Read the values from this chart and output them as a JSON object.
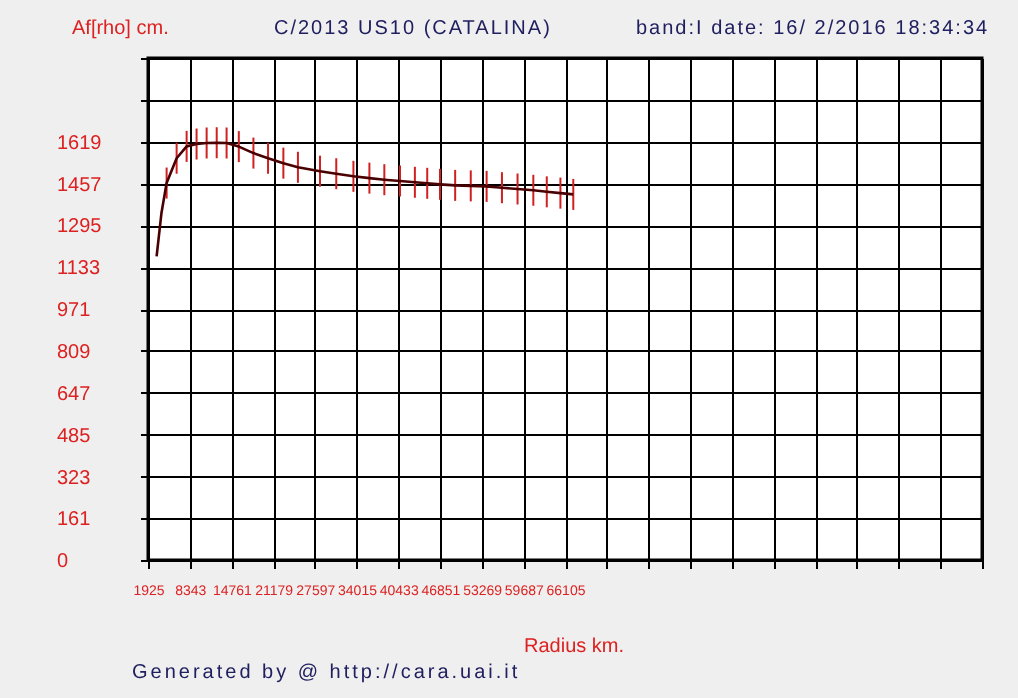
{
  "chart_data": {
    "type": "line",
    "title": "C/2013 US10 (CATALINA)",
    "subtitle": "band:I date: 16/ 2/2016 18:34:34",
    "ylabel": "Af[rho] cm.",
    "xlabel": "Radius km.",
    "annotations": [
      "Generated by @ http://cara.uai.it"
    ],
    "x": [
      3250,
      3990,
      4790,
      6330,
      7870,
      9400,
      10950,
      12500,
      14020,
      15900,
      18150,
      20400,
      22760,
      25000,
      28400,
      30900,
      33540,
      36000,
      38300,
      40710,
      43000,
      44900,
      46870,
      49200,
      51600,
      54040,
      56400,
      58800,
      61230,
      63300,
      65400,
      67380
    ],
    "series": [
      {
        "color": "#4a0000",
        "values": [
          1175,
          1342,
          1459,
          1555,
          1601,
          1610,
          1614,
          1615,
          1614,
          1600,
          1575,
          1555,
          1536,
          1520,
          1505,
          1495,
          1485,
          1478,
          1472,
          1467,
          1462,
          1458,
          1454,
          1450,
          1448,
          1446,
          1441,
          1436,
          1431,
          1425,
          1420,
          1415
        ],
        "errors": [
          null,
          null,
          60,
          60,
          60,
          60,
          60,
          60,
          60,
          60,
          60,
          60,
          60,
          60,
          60,
          60,
          60,
          60,
          60,
          60,
          60,
          60,
          60,
          60,
          60,
          60,
          60,
          60,
          60,
          60,
          60,
          60
        ]
      }
    ],
    "xlim": [
      1925,
      130285
    ],
    "xticks": [
      1925,
      8343,
      14761,
      21179,
      27597,
      34015,
      40433,
      46851,
      53269,
      59687,
      66105,
      {
        "value": 72523,
        "label": null
      },
      {
        "value": 78941,
        "label": null
      },
      {
        "value": 85359,
        "label": null
      },
      {
        "value": 91777,
        "label": null
      },
      {
        "value": 98195,
        "label": null
      },
      {
        "value": 104613,
        "label": null
      },
      {
        "value": 111031,
        "label": null
      },
      {
        "value": 117449,
        "label": null
      },
      {
        "value": 123867,
        "label": null
      },
      {
        "value": 130285,
        "label": null
      }
    ],
    "ylim": [
      0,
      1943
    ],
    "yticks": [
      0,
      161,
      323,
      485,
      647,
      809,
      971,
      1133,
      1295,
      1457,
      1619,
      {
        "value": 1781,
        "label": null
      },
      {
        "value": 1943,
        "label": null
      }
    ],
    "grid": true,
    "marker": "none",
    "line_style": "solid"
  }
}
